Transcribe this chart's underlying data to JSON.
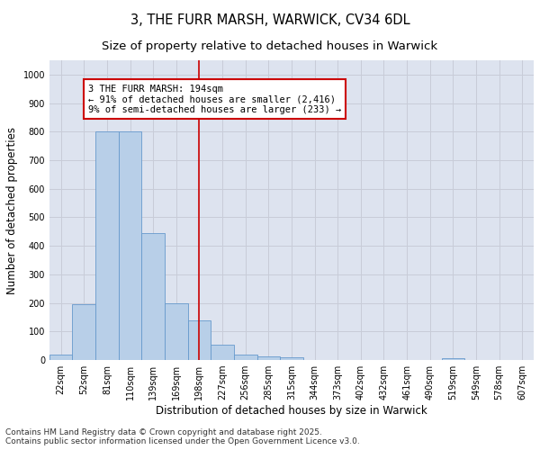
{
  "title_line1": "3, THE FURR MARSH, WARWICK, CV34 6DL",
  "title_line2": "Size of property relative to detached houses in Warwick",
  "xlabel": "Distribution of detached houses by size in Warwick",
  "ylabel": "Number of detached properties",
  "categories": [
    "22sqm",
    "52sqm",
    "81sqm",
    "110sqm",
    "139sqm",
    "169sqm",
    "198sqm",
    "227sqm",
    "256sqm",
    "285sqm",
    "315sqm",
    "344sqm",
    "373sqm",
    "402sqm",
    "432sqm",
    "461sqm",
    "490sqm",
    "519sqm",
    "549sqm",
    "578sqm",
    "607sqm"
  ],
  "values": [
    20,
    195,
    800,
    800,
    445,
    200,
    140,
    55,
    20,
    12,
    10,
    0,
    0,
    0,
    0,
    0,
    0,
    8,
    0,
    0,
    0
  ],
  "bar_color": "#b8cfe8",
  "bar_edge_color": "#6699cc",
  "vline_x_idx": 6,
  "annotation_text_line1": "3 THE FURR MARSH: 194sqm",
  "annotation_text_line2": "← 91% of detached houses are smaller (2,416)",
  "annotation_text_line3": "9% of semi-detached houses are larger (233) →",
  "annotation_box_color": "#ffffff",
  "annotation_box_edge_color": "#cc0000",
  "vline_color": "#cc0000",
  "ylim": [
    0,
    1050
  ],
  "yticks": [
    0,
    100,
    200,
    300,
    400,
    500,
    600,
    700,
    800,
    900,
    1000
  ],
  "grid_color": "#c8ccd8",
  "plot_bg_color": "#dde3ef",
  "fig_bg_color": "#ffffff",
  "footer_line1": "Contains HM Land Registry data © Crown copyright and database right 2025.",
  "footer_line2": "Contains public sector information licensed under the Open Government Licence v3.0.",
  "title_fontsize": 10.5,
  "subtitle_fontsize": 9.5,
  "axis_label_fontsize": 8.5,
  "tick_fontsize": 7,
  "annotation_fontsize": 7.5,
  "footer_fontsize": 6.5
}
